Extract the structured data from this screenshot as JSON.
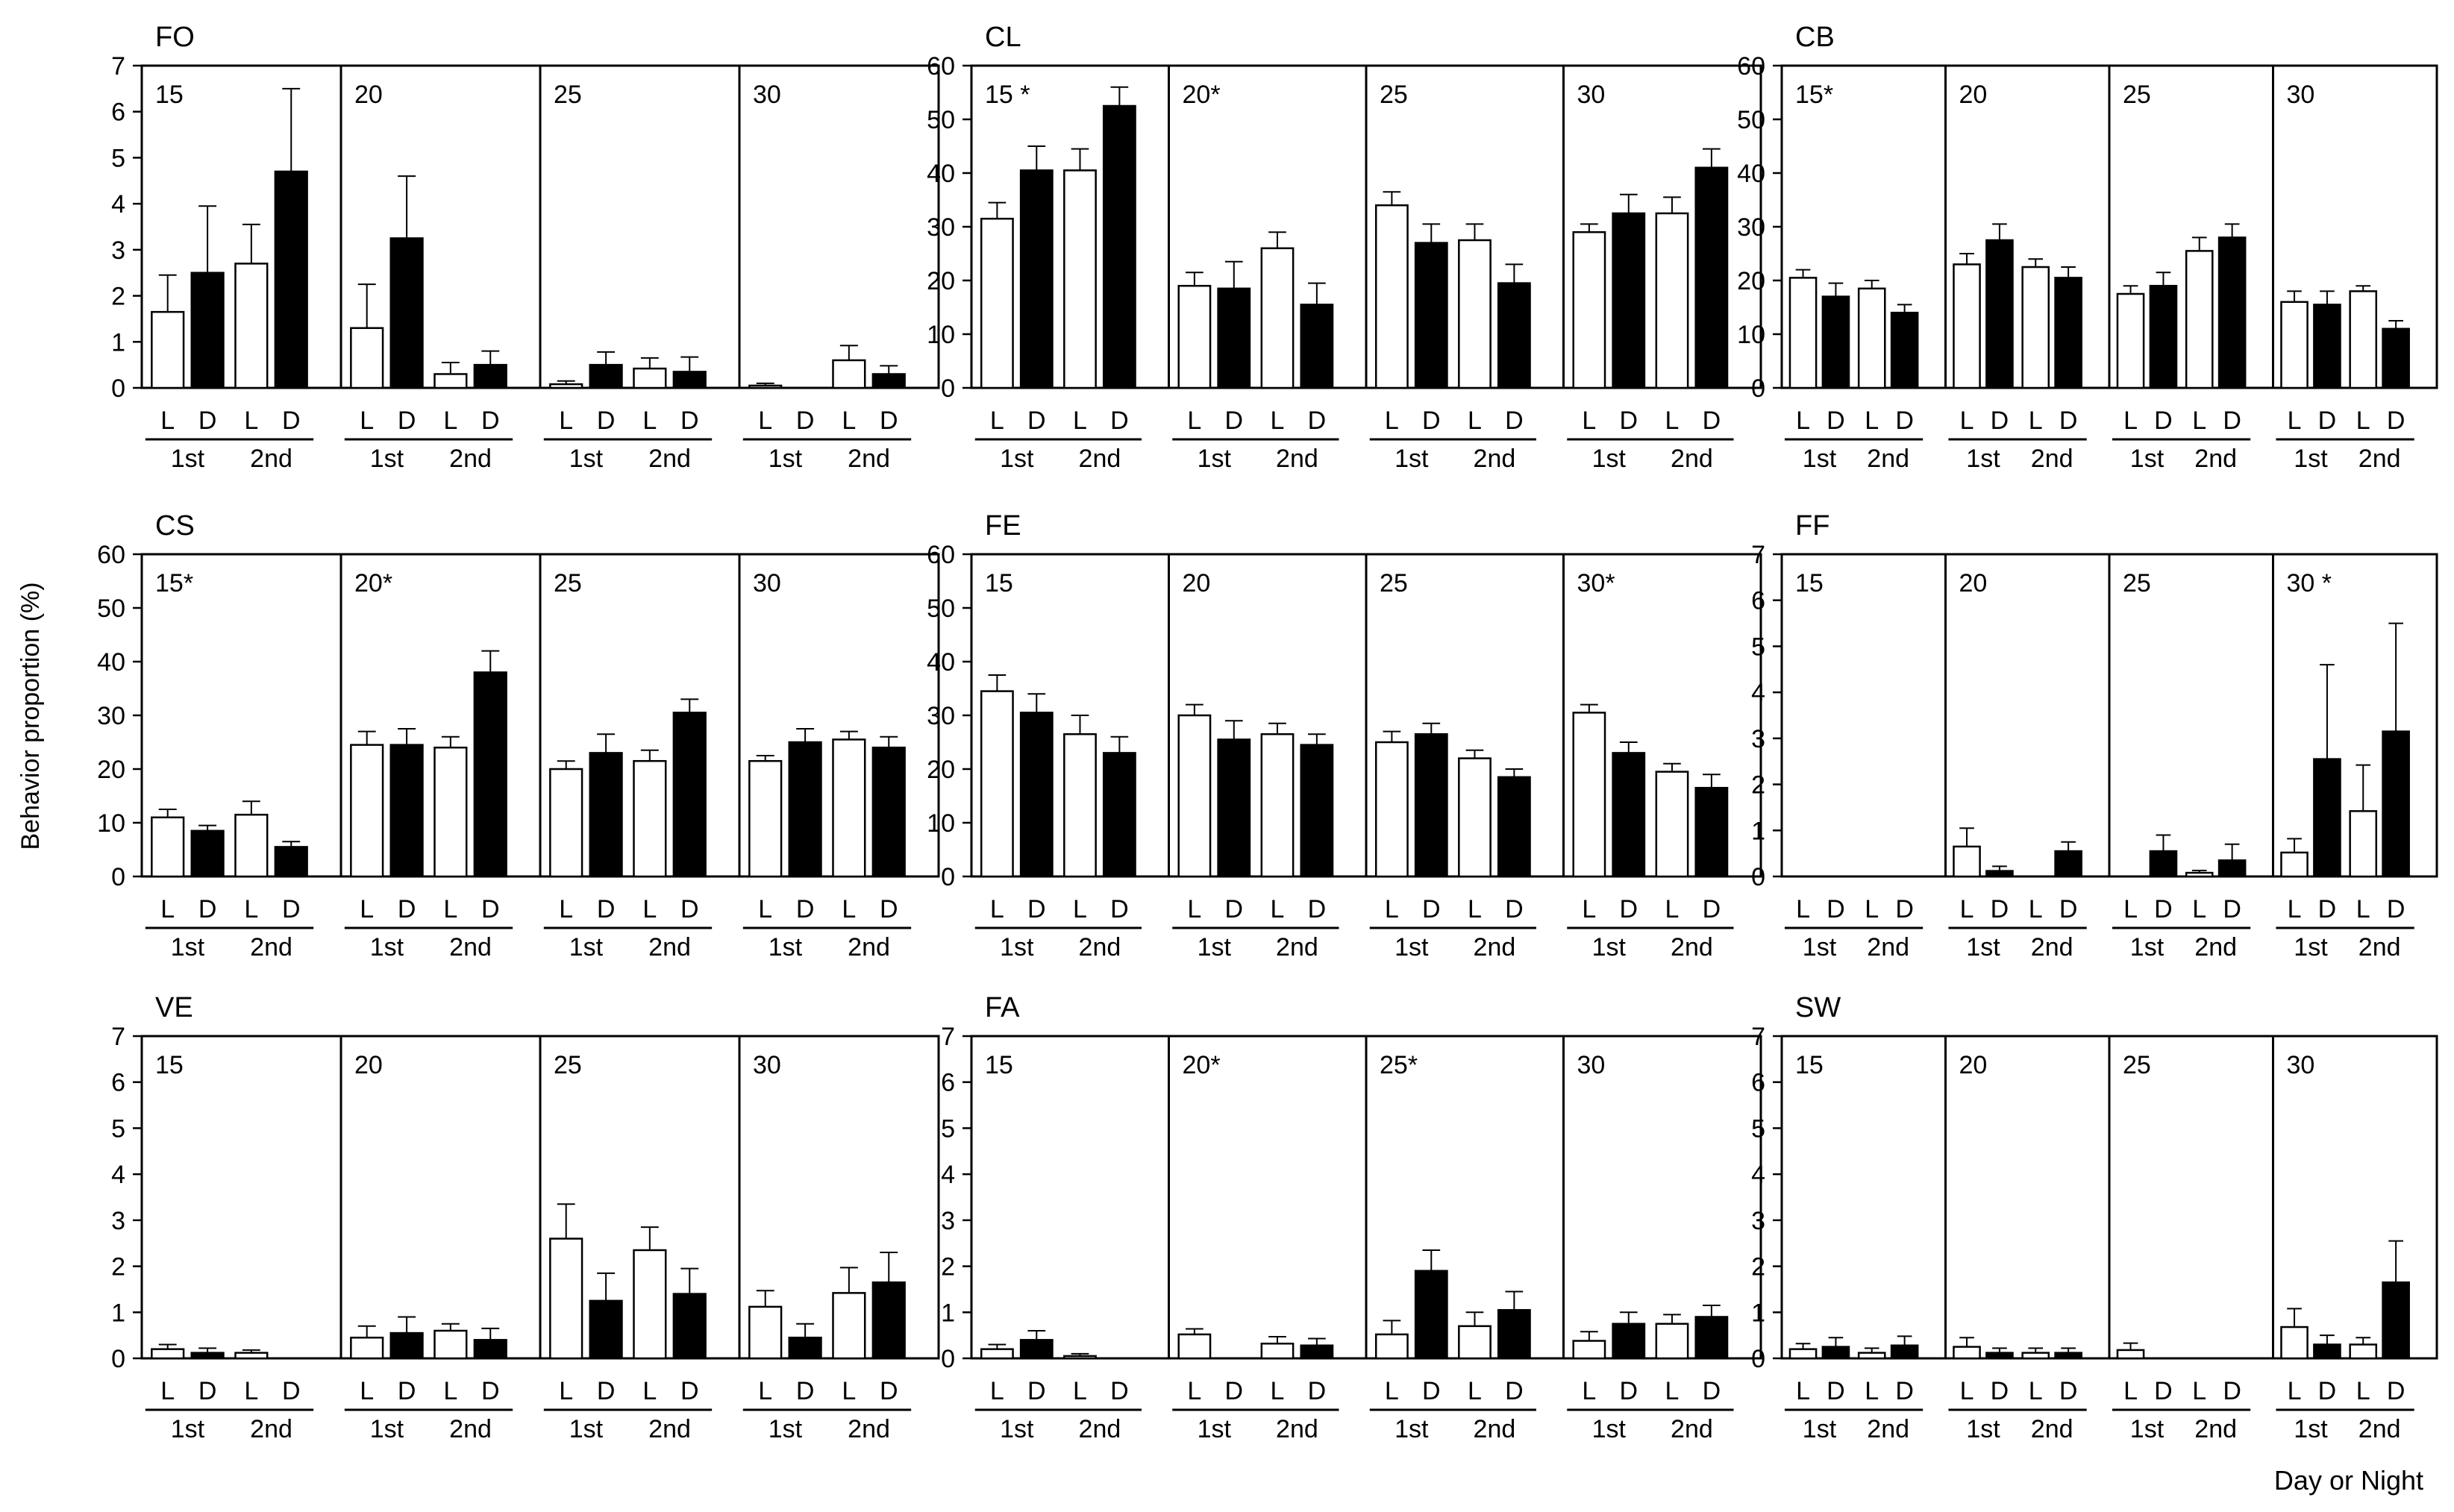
{
  "figure": {
    "ylabel": "Behavior proportion (%)",
    "xlabel": "Day or Night",
    "bar_labels": [
      "L",
      "D"
    ],
    "period_labels": [
      "1st",
      "2nd"
    ]
  },
  "chart_data": [
    {
      "type": "bar",
      "title": "FO",
      "ylim": [
        0,
        7
      ],
      "yticks": [
        "0",
        "1",
        "2",
        "3",
        "4",
        "5",
        "6",
        "7"
      ],
      "groups": [
        {
          "label": "15",
          "values": [
            1.65,
            2.5,
            2.7,
            4.7
          ],
          "errors": [
            0.8,
            1.45,
            0.85,
            1.8
          ]
        },
        {
          "label": "20",
          "values": [
            1.3,
            3.25,
            0.3,
            0.5
          ],
          "errors": [
            0.95,
            1.35,
            0.25,
            0.3
          ]
        },
        {
          "label": "25",
          "values": [
            0.08,
            0.5,
            0.42,
            0.35
          ],
          "errors": [
            0.07,
            0.28,
            0.23,
            0.32
          ]
        },
        {
          "label": "30",
          "values": [
            0.05,
            0.0,
            0.6,
            0.3
          ],
          "errors": [
            0.05,
            0,
            0.32,
            0.18
          ]
        }
      ]
    },
    {
      "type": "bar",
      "title": "CL",
      "ylim": [
        0,
        60
      ],
      "yticks": [
        "0",
        "10",
        "20",
        "30",
        "40",
        "50",
        "60"
      ],
      "groups": [
        {
          "label": "15 *",
          "values": [
            31.5,
            40.5,
            40.5,
            52.5
          ],
          "errors": [
            3,
            4.5,
            4,
            3.5
          ]
        },
        {
          "label": "20*",
          "values": [
            19,
            18.5,
            26,
            15.5
          ],
          "errors": [
            2.5,
            5,
            3,
            4
          ]
        },
        {
          "label": "25",
          "values": [
            34,
            27,
            27.5,
            19.5
          ],
          "errors": [
            2.5,
            3.5,
            3,
            3.5
          ]
        },
        {
          "label": "30",
          "values": [
            29,
            32.5,
            32.5,
            41
          ],
          "errors": [
            1.5,
            3.5,
            3,
            3.5
          ]
        }
      ]
    },
    {
      "type": "bar",
      "title": "CB",
      "ylim": [
        0,
        60
      ],
      "yticks": [
        "0",
        "10",
        "20",
        "30",
        "40",
        "50",
        "60"
      ],
      "groups": [
        {
          "label": "15*",
          "values": [
            20.5,
            17,
            18.5,
            14
          ],
          "errors": [
            1.5,
            2.5,
            1.5,
            1.5
          ]
        },
        {
          "label": "20",
          "values": [
            23,
            27.5,
            22.5,
            20.5
          ],
          "errors": [
            2,
            3,
            1.5,
            2
          ]
        },
        {
          "label": "25",
          "values": [
            17.5,
            19,
            25.5,
            28
          ],
          "errors": [
            1.5,
            2.5,
            2.5,
            2.5
          ]
        },
        {
          "label": "30",
          "values": [
            16,
            15.5,
            18,
            11
          ],
          "errors": [
            2,
            2.5,
            1,
            1.5
          ]
        }
      ]
    },
    {
      "type": "bar",
      "title": "CS",
      "ylim": [
        0,
        60
      ],
      "yticks": [
        "0",
        "10",
        "20",
        "30",
        "40",
        "50",
        "60"
      ],
      "groups": [
        {
          "label": "15*",
          "values": [
            11,
            8.5,
            11.5,
            5.5
          ],
          "errors": [
            1.5,
            1,
            2.5,
            1
          ]
        },
        {
          "label": "20*",
          "values": [
            24.5,
            24.5,
            24,
            38
          ],
          "errors": [
            2.5,
            3,
            2,
            4
          ]
        },
        {
          "label": "25",
          "values": [
            20,
            23,
            21.5,
            30.5
          ],
          "errors": [
            1.5,
            3.5,
            2,
            2.5
          ]
        },
        {
          "label": "30",
          "values": [
            21.5,
            25,
            25.5,
            24
          ],
          "errors": [
            1,
            2.5,
            1.5,
            2
          ]
        }
      ]
    },
    {
      "type": "bar",
      "title": "FE",
      "ylim": [
        0,
        60
      ],
      "yticks": [
        "0",
        "10",
        "20",
        "30",
        "40",
        "50",
        "60"
      ],
      "groups": [
        {
          "label": "15",
          "values": [
            34.5,
            30.5,
            26.5,
            23
          ],
          "errors": [
            3,
            3.5,
            3.5,
            3
          ]
        },
        {
          "label": "20",
          "values": [
            30,
            25.5,
            26.5,
            24.5
          ],
          "errors": [
            2,
            3.5,
            2,
            2
          ]
        },
        {
          "label": "25",
          "values": [
            25,
            26.5,
            22,
            18.5
          ],
          "errors": [
            2,
            2,
            1.5,
            1.5
          ]
        },
        {
          "label": "30*",
          "values": [
            30.5,
            23,
            19.5,
            16.5
          ],
          "errors": [
            1.5,
            2,
            1.5,
            2.5
          ]
        }
      ]
    },
    {
      "type": "bar",
      "title": "FF",
      "ylim": [
        0,
        7
      ],
      "yticks": [
        "0",
        "1",
        "2",
        "3",
        "4",
        "5",
        "6",
        "7"
      ],
      "groups": [
        {
          "label": "15",
          "values": [
            0,
            0,
            0,
            0
          ],
          "errors": [
            0,
            0,
            0,
            0
          ]
        },
        {
          "label": "20",
          "values": [
            0.65,
            0.12,
            0,
            0.55
          ],
          "errors": [
            0.4,
            0.1,
            0,
            0.2
          ]
        },
        {
          "label": "25",
          "values": [
            0,
            0.55,
            0.08,
            0.35
          ],
          "errors": [
            0,
            0.35,
            0.05,
            0.35
          ]
        },
        {
          "label": "30 *",
          "values": [
            0.52,
            2.55,
            1.42,
            3.15
          ],
          "errors": [
            0.3,
            2.05,
            1.0,
            2.35
          ]
        }
      ]
    },
    {
      "type": "bar",
      "title": "VE",
      "ylim": [
        0,
        7
      ],
      "yticks": [
        "0",
        "1",
        "2",
        "3",
        "4",
        "5",
        "6",
        "7"
      ],
      "groups": [
        {
          "label": "15",
          "values": [
            0.2,
            0.12,
            0.12,
            0.0
          ],
          "errors": [
            0.1,
            0.1,
            0.06,
            0
          ]
        },
        {
          "label": "20",
          "values": [
            0.45,
            0.55,
            0.6,
            0.4
          ],
          "errors": [
            0.25,
            0.35,
            0.15,
            0.25
          ]
        },
        {
          "label": "25",
          "values": [
            2.6,
            1.25,
            2.35,
            1.4
          ],
          "errors": [
            0.75,
            0.6,
            0.5,
            0.55
          ]
        },
        {
          "label": "30",
          "values": [
            1.12,
            0.45,
            1.42,
            1.65
          ],
          "errors": [
            0.35,
            0.3,
            0.55,
            0.65
          ]
        }
      ]
    },
    {
      "type": "bar",
      "title": "FA",
      "ylim": [
        0,
        7
      ],
      "yticks": [
        "0",
        "1",
        "2",
        "3",
        "4",
        "5",
        "6",
        "7"
      ],
      "groups": [
        {
          "label": "15",
          "values": [
            0.2,
            0.4,
            0.05,
            0.0
          ],
          "errors": [
            0.1,
            0.2,
            0.05,
            0
          ]
        },
        {
          "label": "20*",
          "values": [
            0.52,
            0.0,
            0.32,
            0.28
          ],
          "errors": [
            0.12,
            0,
            0.15,
            0.15
          ]
        },
        {
          "label": "25*",
          "values": [
            0.52,
            1.9,
            0.7,
            1.05
          ],
          "errors": [
            0.3,
            0.45,
            0.3,
            0.4
          ]
        },
        {
          "label": "30",
          "values": [
            0.38,
            0.75,
            0.75,
            0.9
          ],
          "errors": [
            0.2,
            0.25,
            0.2,
            0.25
          ]
        }
      ]
    },
    {
      "type": "bar",
      "title": "SW",
      "ylim": [
        0,
        7
      ],
      "yticks": [
        "0",
        "1",
        "2",
        "3",
        "4",
        "5",
        "6",
        "7"
      ],
      "groups": [
        {
          "label": "15",
          "values": [
            0.2,
            0.25,
            0.12,
            0.28
          ],
          "errors": [
            0.12,
            0.2,
            0.1,
            0.2
          ]
        },
        {
          "label": "20",
          "values": [
            0.25,
            0.12,
            0.12,
            0.12
          ],
          "errors": [
            0.2,
            0.1,
            0.1,
            0.1
          ]
        },
        {
          "label": "25",
          "values": [
            0.18,
            0.0,
            0.0,
            0.0
          ],
          "errors": [
            0.15,
            0,
            0,
            0
          ]
        },
        {
          "label": "30",
          "values": [
            0.68,
            0.3,
            0.3,
            1.65
          ],
          "errors": [
            0.4,
            0.2,
            0.15,
            0.9
          ]
        }
      ]
    }
  ]
}
